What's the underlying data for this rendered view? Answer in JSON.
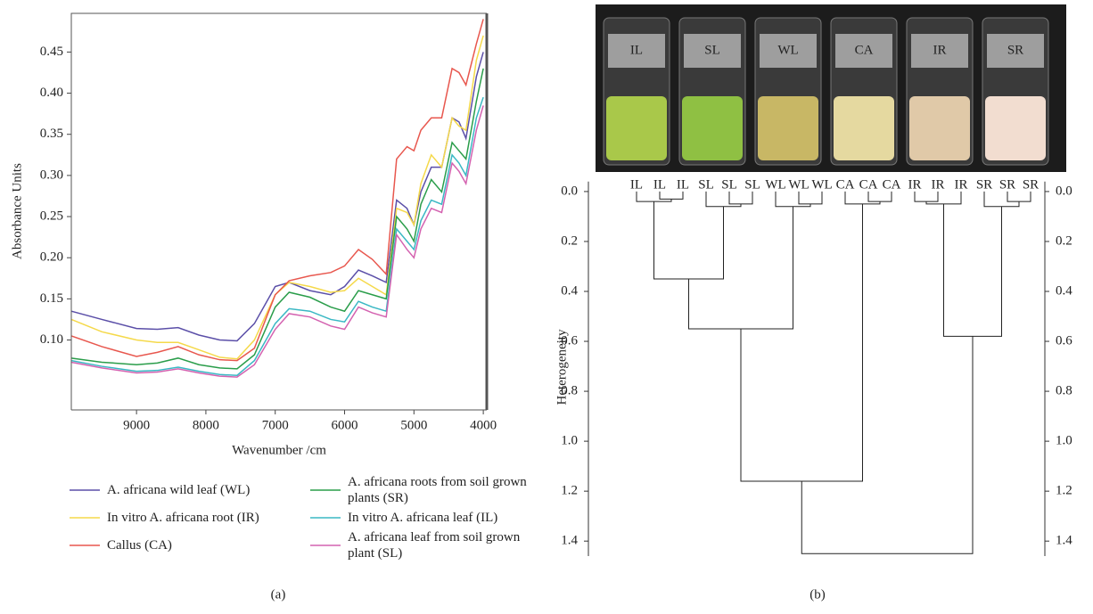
{
  "chart_data": [
    {
      "type": "line",
      "ylabel": "Absorbance Units",
      "xlabel": "Wavenumber /cm",
      "x": [
        9940,
        9500,
        9000,
        8700,
        8400,
        8100,
        7800,
        7550,
        7300,
        7000,
        6800,
        6500,
        6200,
        6000,
        5800,
        5600,
        5400,
        5250,
        5100,
        5000,
        4900,
        4750,
        4600,
        4450,
        4350,
        4250,
        4100,
        4000
      ],
      "xlim": [
        9940,
        3950
      ],
      "xticks": [
        9000,
        8000,
        7000,
        6000,
        5000,
        4000
      ],
      "ylim": [
        0.015,
        0.497
      ],
      "yticks": [
        {
          "value": 0.1,
          "label": "0.10"
        },
        0.15,
        {
          "value": 0.2,
          "label": "0.20"
        },
        0.25,
        {
          "value": 0.3,
          "label": "0.30"
        },
        0.35,
        {
          "value": 0.4,
          "label": "0.40"
        },
        0.45
      ],
      "series": [
        {
          "name": "A. africana wild leaf (WL)",
          "color": "#5b4fa8",
          "values": [
            0.135,
            0.125,
            0.114,
            0.113,
            0.115,
            0.106,
            0.1,
            0.099,
            0.12,
            0.165,
            0.17,
            0.16,
            0.155,
            0.165,
            0.185,
            0.178,
            0.17,
            0.27,
            0.26,
            0.24,
            0.28,
            0.31,
            0.31,
            0.37,
            0.365,
            0.345,
            0.42,
            0.45
          ]
        },
        {
          "name": "In vitro A. africana root (IR)",
          "color": "#f5d94a",
          "values": [
            0.125,
            0.11,
            0.1,
            0.097,
            0.097,
            0.088,
            0.079,
            0.077,
            0.1,
            0.155,
            0.17,
            0.165,
            0.158,
            0.16,
            0.175,
            0.165,
            0.155,
            0.26,
            0.255,
            0.24,
            0.29,
            0.325,
            0.31,
            0.37,
            0.36,
            0.355,
            0.44,
            0.47
          ]
        },
        {
          "name": "Callus (CA)",
          "color": "#e8574e",
          "values": [
            0.105,
            0.092,
            0.08,
            0.085,
            0.092,
            0.082,
            0.076,
            0.075,
            0.09,
            0.155,
            0.172,
            0.178,
            0.182,
            0.19,
            0.21,
            0.198,
            0.18,
            0.32,
            0.335,
            0.33,
            0.355,
            0.37,
            0.37,
            0.43,
            0.425,
            0.41,
            0.46,
            0.49
          ]
        },
        {
          "name": "A. africana roots from soil grown plants (SR)",
          "color": "#2a9d4a",
          "values": [
            0.078,
            0.073,
            0.07,
            0.072,
            0.078,
            0.07,
            0.066,
            0.065,
            0.082,
            0.14,
            0.158,
            0.152,
            0.14,
            0.135,
            0.16,
            0.155,
            0.15,
            0.25,
            0.235,
            0.22,
            0.265,
            0.295,
            0.28,
            0.34,
            0.33,
            0.32,
            0.39,
            0.43
          ]
        },
        {
          "name": "In vitro A. africana leaf (IL)",
          "color": "#3ab8c4",
          "values": [
            0.075,
            0.068,
            0.062,
            0.063,
            0.067,
            0.062,
            0.058,
            0.057,
            0.075,
            0.12,
            0.138,
            0.135,
            0.125,
            0.122,
            0.147,
            0.14,
            0.135,
            0.235,
            0.22,
            0.21,
            0.245,
            0.27,
            0.265,
            0.325,
            0.315,
            0.3,
            0.37,
            0.395
          ]
        },
        {
          "name": "A. africana leaf from soil grown plant (SL)",
          "color": "#d462b0",
          "values": [
            0.073,
            0.066,
            0.06,
            0.061,
            0.065,
            0.06,
            0.056,
            0.055,
            0.07,
            0.113,
            0.132,
            0.128,
            0.117,
            0.113,
            0.14,
            0.133,
            0.128,
            0.228,
            0.21,
            0.2,
            0.235,
            0.26,
            0.255,
            0.315,
            0.305,
            0.29,
            0.355,
            0.385
          ]
        }
      ]
    },
    {
      "type": "dendrogram",
      "ylabel": "Heterogeneity",
      "leaves": [
        "IL",
        "IL",
        "IL",
        "SL",
        "SL",
        "SL",
        "WL",
        "WL",
        "WL",
        "CA",
        "CA",
        "CA",
        "IR",
        "IR",
        "IR",
        "SR",
        "SR",
        "SR"
      ],
      "merges": [
        [
          1,
          2,
          0.03
        ],
        [
          0,
          18,
          0.04
        ],
        [
          4,
          5,
          0.05
        ],
        [
          3,
          20,
          0.06
        ],
        [
          7,
          8,
          0.05
        ],
        [
          6,
          22,
          0.06
        ],
        [
          10,
          11,
          0.04
        ],
        [
          9,
          24,
          0.05
        ],
        [
          12,
          13,
          0.04
        ],
        [
          26,
          14,
          0.05
        ],
        [
          16,
          17,
          0.04
        ],
        [
          15,
          28,
          0.06
        ],
        [
          19,
          21,
          0.35
        ],
        [
          30,
          23,
          0.55
        ],
        [
          27,
          29,
          0.58
        ],
        [
          31,
          25,
          1.16
        ],
        [
          33,
          32,
          1.45
        ]
      ],
      "ylim": [
        -0.04,
        1.46
      ],
      "yticks": [
        {
          "value": 0,
          "label": "0.0"
        },
        0.2,
        0.4,
        0.6,
        0.8,
        {
          "value": 1,
          "label": "1.0"
        },
        1.2,
        1.4
      ]
    }
  ],
  "photo": {
    "labels": [
      "IL",
      "SL",
      "WL",
      "CA",
      "IR",
      "SR"
    ]
  },
  "captions": [
    "(a)",
    "(b)"
  ]
}
